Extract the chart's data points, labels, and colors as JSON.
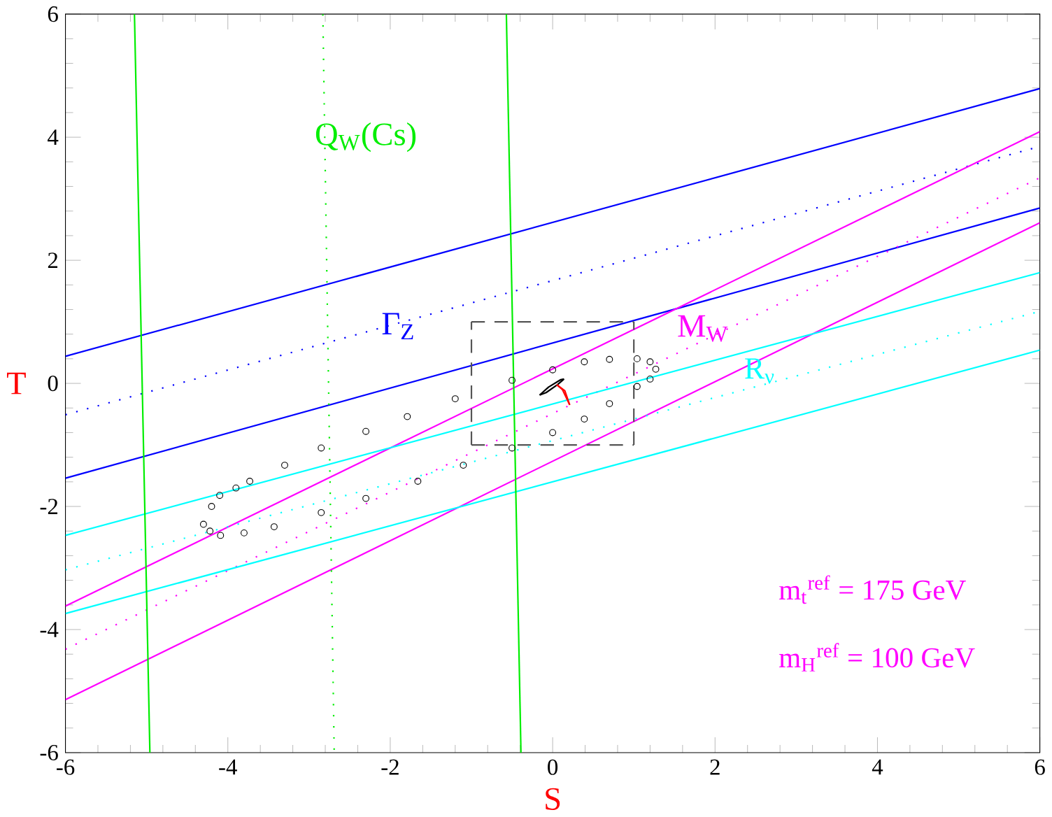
{
  "chart_data": {
    "type": "line",
    "xlabel": "S",
    "ylabel": "T",
    "xlim": [
      -6,
      6
    ],
    "ylim": [
      -6,
      6
    ],
    "xticks": [
      -6,
      -4,
      -2,
      0,
      2,
      4,
      6
    ],
    "yticks": [
      -6,
      -4,
      -2,
      0,
      2,
      4,
      6
    ],
    "marker": "none",
    "series": [
      {
        "color": "#0000ff",
        "x": [
          -6,
          6
        ],
        "values": [
          0.44,
          4.79
        ],
        "line_style": "solid"
      },
      {
        "color": "#0000ff",
        "x": [
          -6,
          6
        ],
        "values": [
          -1.54,
          2.85
        ],
        "line_style": "solid"
      },
      {
        "color": "#0000ff",
        "x": [
          -6,
          6
        ],
        "values": [
          -0.51,
          3.85
        ],
        "line_style": "dotted"
      },
      {
        "color": "#ff00ff",
        "x": [
          -6,
          6
        ],
        "values": [
          -3.62,
          4.09
        ],
        "line_style": "solid"
      },
      {
        "color": "#ff00ff",
        "x": [
          -6,
          6
        ],
        "values": [
          -5.14,
          2.61
        ],
        "line_style": "solid"
      },
      {
        "color": "#ff00ff",
        "x": [
          -6,
          6
        ],
        "values": [
          -4.32,
          3.34
        ],
        "line_style": "dotted"
      },
      {
        "color": "#00ffff",
        "x": [
          -6,
          6
        ],
        "values": [
          -2.47,
          1.8
        ],
        "line_style": "solid"
      },
      {
        "color": "#00ffff",
        "x": [
          -6,
          6
        ],
        "values": [
          -3.74,
          0.54
        ],
        "line_style": "solid"
      },
      {
        "color": "#00ffff",
        "x": [
          -6,
          6
        ],
        "values": [
          -3.03,
          1.17
        ],
        "line_style": "dotted"
      },
      {
        "color": "#00ee00",
        "x": [
          -5.15,
          -4.96
        ],
        "values": [
          6,
          -6
        ],
        "line_style": "solid"
      },
      {
        "color": "#00ee00",
        "x": [
          -0.57,
          -0.39
        ],
        "values": [
          6,
          -6
        ],
        "line_style": "solid"
      },
      {
        "color": "#00ee00",
        "x": [
          -2.83,
          -2.69
        ],
        "values": [
          6,
          -6
        ],
        "line_style": "dotted"
      },
      {
        "color": "#555555",
        "x": [
          -1,
          1
        ],
        "values": [
          1,
          1
        ],
        "line_style": "dashed"
      },
      {
        "color": "#555555",
        "x": [
          -1,
          1
        ],
        "values": [
          -1,
          -1
        ],
        "line_style": "dashed"
      },
      {
        "color": "#555555",
        "x": [
          -1,
          -1
        ],
        "values": [
          -1,
          1
        ],
        "line_style": "dashed"
      },
      {
        "color": "#555555",
        "x": [
          1,
          1
        ],
        "values": [
          -1,
          1
        ],
        "line_style": "dashed"
      },
      {
        "type": "scatter",
        "color": "#000000",
        "marker": "circle",
        "x": [
          -4.3,
          -4.2,
          -4.1,
          -3.9,
          -3.73,
          -3.3,
          -2.85,
          -2.3,
          -1.79,
          -1.2,
          -0.5,
          0.0,
          0.39,
          0.7,
          1.04,
          1.2,
          1.27,
          1.2,
          1.04,
          0.7,
          0.39,
          0.0,
          -0.5,
          -1.1,
          -1.66,
          -2.3,
          -2.85,
          -3.43,
          -3.8,
          -4.09,
          -4.22
        ],
        "values": [
          -2.29,
          -2.0,
          -1.82,
          -1.7,
          -1.59,
          -1.33,
          -1.05,
          -0.78,
          -0.54,
          -0.25,
          0.05,
          0.22,
          0.35,
          0.39,
          0.4,
          0.35,
          0.23,
          0.07,
          -0.05,
          -0.33,
          -0.58,
          -0.8,
          -1.05,
          -1.33,
          -1.59,
          -1.87,
          -2.1,
          -2.33,
          -2.43,
          -2.47,
          -2.4
        ]
      },
      {
        "color": "#000000",
        "x": [
          -0.16,
          -0.05,
          0.1,
          0.14
        ],
        "values": [
          -0.19,
          -0.06,
          0.06,
          0.07
        ],
        "line_style": "solid"
      },
      {
        "color": "#000000",
        "x": [
          -0.16,
          -0.08,
          0.06,
          0.14
        ],
        "values": [
          -0.19,
          -0.15,
          -0.02,
          0.07
        ],
        "line_style": "solid"
      },
      {
        "color": "#ff0000",
        "x": [
          0.05,
          0.15,
          0.21
        ],
        "values": [
          -0.02,
          -0.12,
          -0.35
        ],
        "line_style": "solid"
      },
      {
        "color": "#ff0000",
        "x": [
          0.05,
          0.12,
          0.21
        ],
        "values": [
          -0.02,
          -0.1,
          -0.35
        ],
        "line_style": "solid"
      }
    ],
    "annotations": [
      "Q$_{W}$(Cs)",
      "Γ$_{Z}$",
      "M$_{W}$",
      "R$_{ν}$",
      "m$_{t}$$^{ref}$ = 175 GeV",
      "m$_{H}$$^{ref}$ = 100 GeV"
    ]
  }
}
